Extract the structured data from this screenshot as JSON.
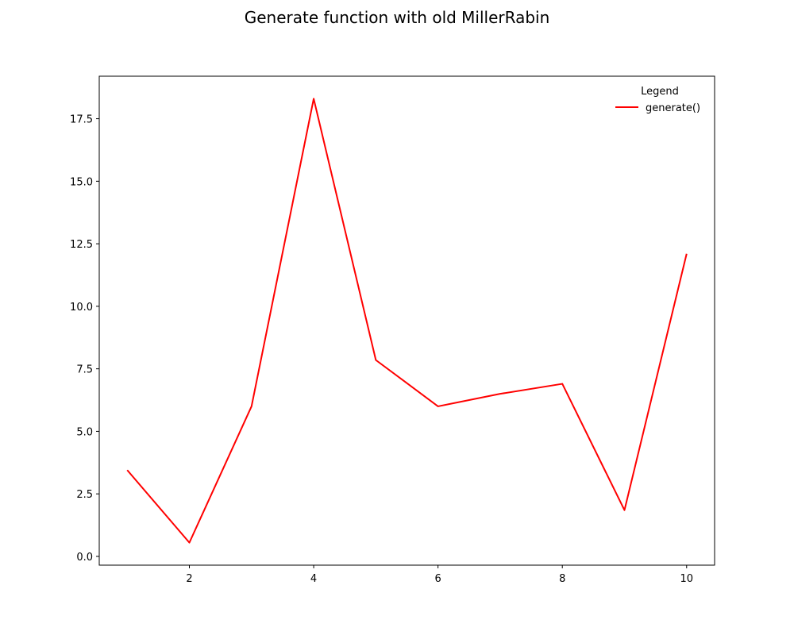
{
  "chart_data": {
    "type": "line",
    "title": "Generate function with old MillerRabin",
    "xlabel": "",
    "ylabel": "",
    "xlim": [
      0.55,
      10.45
    ],
    "ylim": [
      -0.35,
      19.2
    ],
    "x_ticks": [
      2,
      4,
      6,
      8,
      10
    ],
    "y_ticks": [
      0.0,
      2.5,
      5.0,
      7.5,
      10.0,
      12.5,
      15.0,
      17.5
    ],
    "x_tick_labels": [
      "2",
      "4",
      "6",
      "8",
      "10"
    ],
    "y_tick_labels": [
      "0.0",
      "2.5",
      "5.0",
      "7.5",
      "10.0",
      "12.5",
      "15.0",
      "17.5"
    ],
    "grid": false,
    "legend": {
      "title": "Legend",
      "placement": "top-right"
    },
    "series": [
      {
        "name": "generate()",
        "color": "#ff0000",
        "x": [
          1,
          2,
          3,
          4,
          5,
          6,
          7,
          8,
          9,
          10
        ],
        "y": [
          3.45,
          0.55,
          6.0,
          18.3,
          7.85,
          6.0,
          6.5,
          6.9,
          1.85,
          12.1
        ]
      }
    ]
  }
}
